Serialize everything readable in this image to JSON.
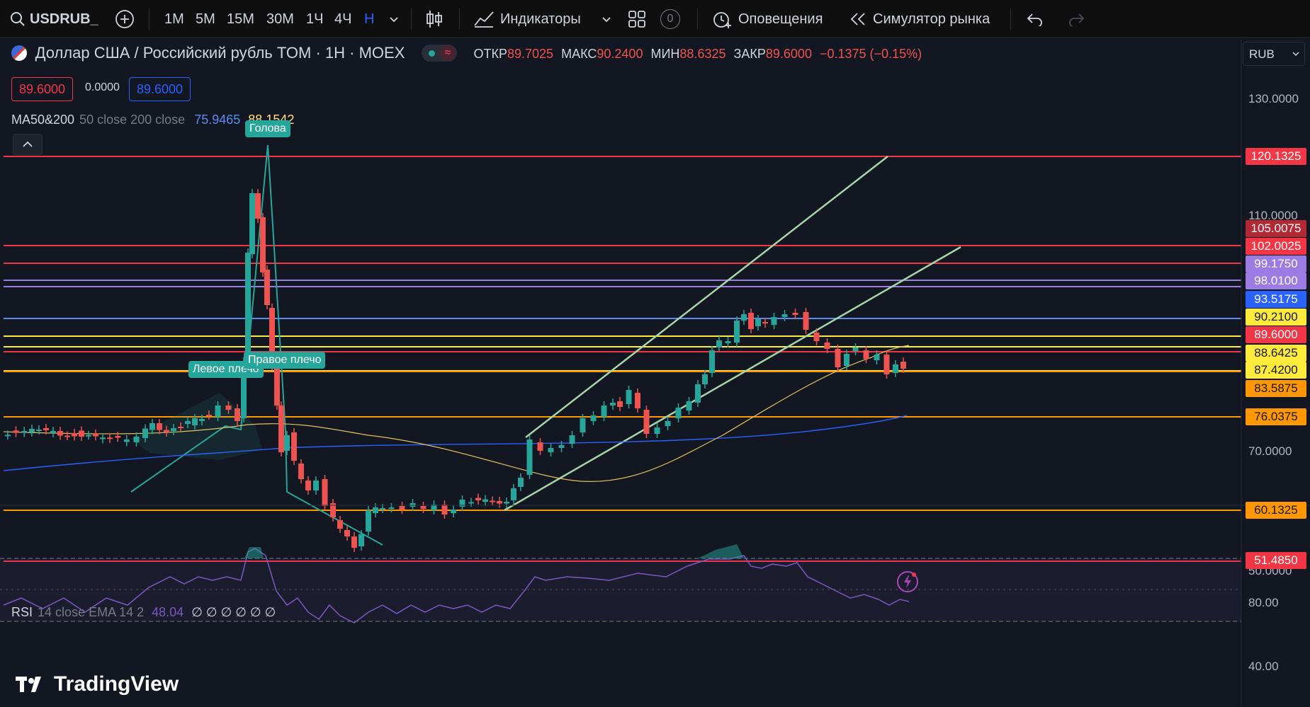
{
  "toolbar": {
    "symbol": "USDRUB_",
    "intervals": [
      "1М",
      "5М",
      "15М",
      "30М",
      "1Ч",
      "4Ч",
      "Н"
    ],
    "indicators_label": "Индикаторы",
    "alerts_count": "0",
    "alerts_label": "Оповещения",
    "simulator_label": "Симулятор рынка"
  },
  "legend": {
    "title": "Доллар США / Российский рубль TOM · 1H · MOEX",
    "ohlc": {
      "open_label": "ОТКР",
      "open": "89.7025",
      "high_label": "МАКС",
      "high": "90.2400",
      "low_label": "МИН",
      "low": "88.6325",
      "close_label": "ЗАКР",
      "close": "89.6000",
      "change": "−0.1375 (−0.15%)"
    },
    "bid": "89.6000",
    "spread": "0.0000",
    "ask": "89.6000",
    "ma": {
      "name": "MA50&200",
      "params": "50 close 200 close",
      "v1": "75.9465",
      "v2": "88.1542"
    },
    "rsi": {
      "name": "RSI",
      "params": "14 close EMA 14 2",
      "value": "48.04",
      "extras": "∅ ∅ ∅ ∅ ∅ ∅"
    }
  },
  "currency": "RUB",
  "price_axis": {
    "ticks": [
      "130.0000",
      "110.0000",
      "70.0000",
      "50.0000"
    ],
    "levels": [
      {
        "label": "120.1325",
        "bg": "#f23645",
        "fg": "#ffffff",
        "line": "#f23645"
      },
      {
        "label": "105.0075",
        "bg": "#b22833",
        "fg": "#ffffff",
        "line": "#f23645"
      },
      {
        "label": "102.0025",
        "bg": "#f23645",
        "fg": "#ffffff",
        "line": "#f23645"
      },
      {
        "label": "99.1750",
        "bg": "#9c7ce3",
        "fg": "#ffffff",
        "line": "#9c7ce3"
      },
      {
        "label": "98.0100",
        "bg": "#9c7ce3",
        "fg": "#ffffff",
        "line": "#9c7ce3"
      },
      {
        "label": "93.5175",
        "bg": "#2962ff",
        "fg": "#ffffff",
        "line": "#5b8def"
      },
      {
        "label": "90.2100",
        "bg": "#ffeb3b",
        "fg": "#131722",
        "line": "#ffeb3b"
      },
      {
        "label": "89.6000",
        "bg": "#f23645",
        "fg": "#ffffff",
        "line": "#f23645"
      },
      {
        "label": "88.6425",
        "bg": "#ffeb3b",
        "fg": "#131722",
        "line": "#ffeb3b"
      },
      {
        "label": "87.4200",
        "bg": "#ffeb3b",
        "fg": "#131722",
        "line": "#ffeb3b"
      },
      {
        "label": "83.5875",
        "bg": "#ff9800",
        "fg": "#131722",
        "line": "#ff9800"
      },
      {
        "label": "76.0375",
        "bg": "#ff9800",
        "fg": "#131722",
        "line": "#ff9800"
      },
      {
        "label": "60.1325",
        "bg": "#ff9800",
        "fg": "#131722",
        "line": "#ff9800"
      },
      {
        "label": "51.4850",
        "bg": "#f23645",
        "fg": "#ffffff",
        "line": "#f23645"
      }
    ]
  },
  "rsi_axis": {
    "ticks": [
      "80.00",
      "40.00"
    ]
  },
  "patterns": {
    "left_shoulder": "Левое плечо",
    "head": "Голова",
    "right_shoulder": "Правое плечо"
  },
  "brand": "TradingView",
  "colors": {
    "up": "#26a69a",
    "down": "#ef5350",
    "background": "#131722"
  }
}
